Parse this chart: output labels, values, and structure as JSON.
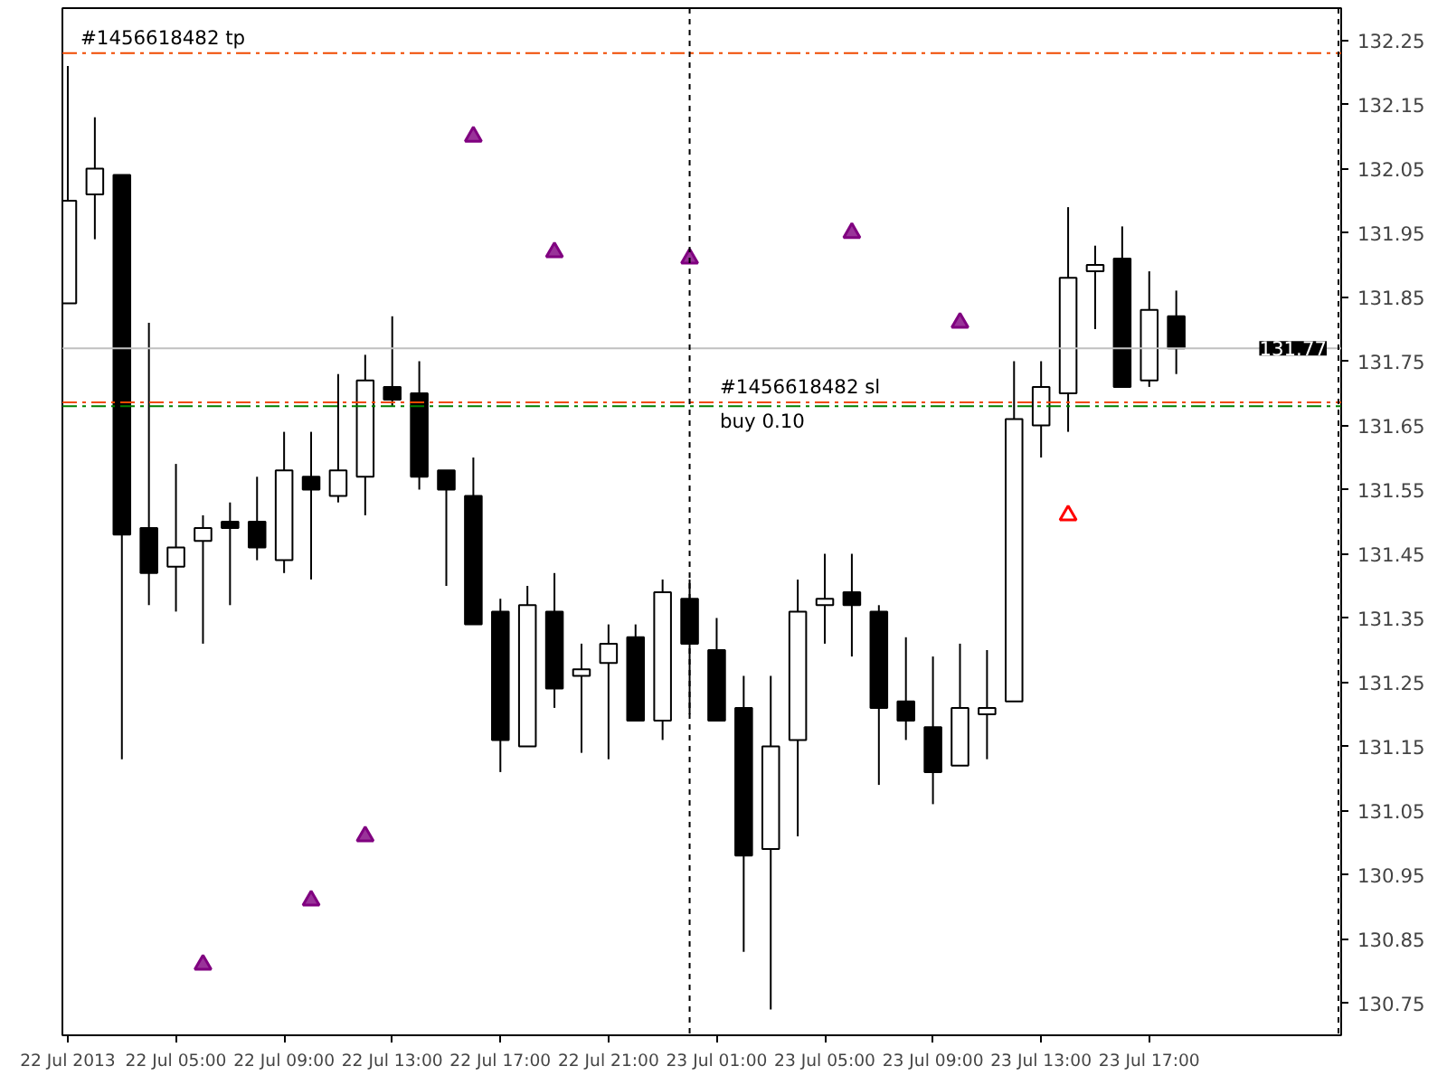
{
  "chart_data": {
    "type": "candlestick",
    "x": [
      "2013-07-22T01:00",
      "2013-07-22T02:00",
      "2013-07-22T03:00",
      "2013-07-22T04:00",
      "2013-07-22T05:00",
      "2013-07-22T06:00",
      "2013-07-22T07:00",
      "2013-07-22T08:00",
      "2013-07-22T09:00",
      "2013-07-22T10:00",
      "2013-07-22T11:00",
      "2013-07-22T12:00",
      "2013-07-22T13:00",
      "2013-07-22T14:00",
      "2013-07-22T15:00",
      "2013-07-22T16:00",
      "2013-07-22T17:00",
      "2013-07-22T18:00",
      "2013-07-22T19:00",
      "2013-07-22T20:00",
      "2013-07-22T21:00",
      "2013-07-22T22:00",
      "2013-07-22T23:00",
      "2013-07-23T00:00",
      "2013-07-23T01:00",
      "2013-07-23T02:00",
      "2013-07-23T03:00",
      "2013-07-23T04:00",
      "2013-07-23T05:00",
      "2013-07-23T06:00",
      "2013-07-23T07:00",
      "2013-07-23T08:00",
      "2013-07-23T09:00",
      "2013-07-23T10:00",
      "2013-07-23T11:00",
      "2013-07-23T12:00",
      "2013-07-23T13:00",
      "2013-07-23T14:00",
      "2013-07-23T15:00",
      "2013-07-23T16:00",
      "2013-07-23T17:00",
      "2013-07-23T18:00"
    ],
    "ohlc": [
      [
        131.84,
        132.21,
        131.84,
        132.0
      ],
      [
        132.01,
        132.13,
        131.94,
        132.05
      ],
      [
        132.04,
        132.04,
        131.13,
        131.48
      ],
      [
        131.49,
        131.81,
        131.37,
        131.42
      ],
      [
        131.43,
        131.59,
        131.36,
        131.46
      ],
      [
        131.47,
        131.51,
        131.31,
        131.49
      ],
      [
        131.5,
        131.53,
        131.37,
        131.49
      ],
      [
        131.5,
        131.57,
        131.44,
        131.46
      ],
      [
        131.44,
        131.64,
        131.42,
        131.58
      ],
      [
        131.57,
        131.64,
        131.41,
        131.55
      ],
      [
        131.54,
        131.73,
        131.53,
        131.58
      ],
      [
        131.57,
        131.76,
        131.51,
        131.72
      ],
      [
        131.71,
        131.82,
        131.68,
        131.69
      ],
      [
        131.7,
        131.75,
        131.55,
        131.57
      ],
      [
        131.58,
        131.58,
        131.4,
        131.55
      ],
      [
        131.54,
        131.6,
        131.34,
        131.34
      ],
      [
        131.36,
        131.38,
        131.11,
        131.16
      ],
      [
        131.15,
        131.4,
        131.15,
        131.37
      ],
      [
        131.36,
        131.42,
        131.21,
        131.24
      ],
      [
        131.26,
        131.31,
        131.14,
        131.27
      ],
      [
        131.28,
        131.34,
        131.13,
        131.31
      ],
      [
        131.32,
        131.34,
        131.19,
        131.19
      ],
      [
        131.19,
        131.41,
        131.16,
        131.39
      ],
      [
        131.38,
        131.41,
        131.2,
        131.31
      ],
      [
        131.3,
        131.35,
        131.19,
        131.19
      ],
      [
        131.21,
        131.26,
        130.83,
        130.98
      ],
      [
        130.99,
        131.26,
        130.74,
        131.15
      ],
      [
        131.16,
        131.41,
        131.01,
        131.36
      ],
      [
        131.37,
        131.45,
        131.31,
        131.38
      ],
      [
        131.39,
        131.45,
        131.29,
        131.37
      ],
      [
        131.36,
        131.37,
        131.09,
        131.21
      ],
      [
        131.22,
        131.32,
        131.16,
        131.19
      ],
      [
        131.18,
        131.29,
        131.06,
        131.11
      ],
      [
        131.12,
        131.31,
        131.12,
        131.21
      ],
      [
        131.2,
        131.3,
        131.13,
        131.21
      ],
      [
        131.22,
        131.75,
        131.22,
        131.66
      ],
      [
        131.65,
        131.75,
        131.6,
        131.71
      ],
      [
        131.7,
        131.99,
        131.64,
        131.88
      ],
      [
        131.89,
        131.93,
        131.8,
        131.9
      ],
      [
        131.91,
        131.96,
        131.71,
        131.71
      ],
      [
        131.72,
        131.89,
        131.71,
        131.83
      ],
      [
        131.82,
        131.86,
        131.73,
        131.77
      ]
    ],
    "series": [
      {
        "type": "scatter",
        "marker": "triangle",
        "color": "#800080",
        "x": [
          "2013-07-22T16:00",
          "2013-07-22T19:00",
          "2013-07-23T00:00",
          "2013-07-23T06:00",
          "2013-07-23T10:00"
        ],
        "values": [
          132.1,
          131.92,
          131.91,
          131.95,
          131.81
        ]
      },
      {
        "type": "scatter",
        "marker": "triangle",
        "color": "#800080",
        "x": [
          "2013-07-22T06:00",
          "2013-07-22T10:00",
          "2013-07-22T12:00"
        ],
        "values": [
          130.81,
          130.91,
          131.01
        ]
      },
      {
        "type": "scatter",
        "marker": "triangle",
        "color": "#ff0000",
        "x": [
          "2013-07-23T14:00"
        ],
        "values": [
          131.51
        ]
      }
    ],
    "xlim": [
      "2013-07-22T00:48",
      "2013-07-24T00:06"
    ],
    "ylim": [
      130.7,
      132.3
    ],
    "xticks": [
      {
        "value": "2013-07-22T01:00",
        "label": "22 Jul 2013"
      },
      {
        "value": "2013-07-22T05:00",
        "label": "22 Jul 05:00"
      },
      {
        "value": "2013-07-22T09:00",
        "label": "22 Jul 09:00"
      },
      {
        "value": "2013-07-22T13:00",
        "label": "22 Jul 13:00"
      },
      {
        "value": "2013-07-22T17:00",
        "label": "22 Jul 17:00"
      },
      {
        "value": "2013-07-22T21:00",
        "label": "22 Jul 21:00"
      },
      {
        "value": "2013-07-23T01:00",
        "label": "23 Jul 01:00"
      },
      {
        "value": "2013-07-23T05:00",
        "label": "23 Jul 05:00"
      },
      {
        "value": "2013-07-23T09:00",
        "label": "23 Jul 09:00"
      },
      {
        "value": "2013-07-23T13:00",
        "label": "23 Jul 13:00"
      },
      {
        "value": "2013-07-23T17:00",
        "label": "23 Jul 17:00"
      }
    ],
    "yticks": [
      130.75,
      130.85,
      130.95,
      131.05,
      131.15,
      131.25,
      131.35,
      131.45,
      131.55,
      131.65,
      131.75,
      131.85,
      131.95,
      132.05,
      132.15,
      132.25
    ],
    "ref_lines": [
      {
        "axis": "y",
        "value": 132.23,
        "label": "#1456618482 tp",
        "color": "#f04a00",
        "line_style": "dashed"
      },
      {
        "axis": "y",
        "value": 131.686,
        "label": "#1456618482 sl",
        "color": "#f04a00",
        "line_style": "dashed"
      },
      {
        "axis": "y",
        "value": 131.68,
        "label": "buy 0.10",
        "color": "#008000",
        "line_style": "dashed"
      },
      {
        "axis": "y",
        "value": 131.77,
        "label": "131.77",
        "color": "#c0c0c0",
        "line_style": "solid"
      },
      {
        "axis": "x",
        "value": "2013-07-23T00:00",
        "color": "#000000",
        "line_style": "dotted"
      },
      {
        "axis": "x",
        "value": "2013-07-24T00:00",
        "color": "#000000",
        "line_style": "dotted"
      }
    ],
    "grid": false
  }
}
